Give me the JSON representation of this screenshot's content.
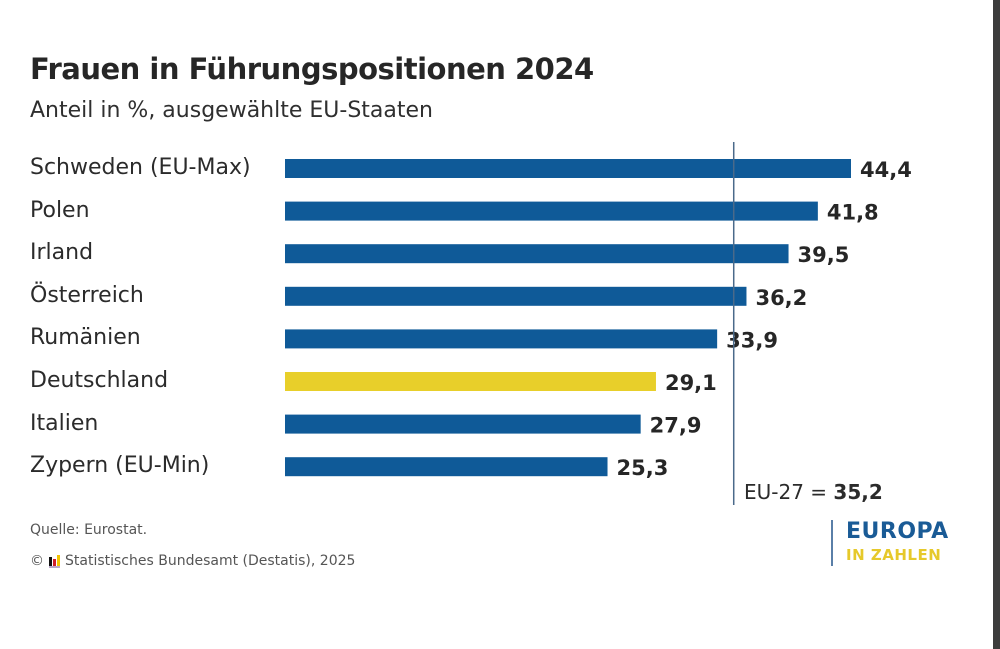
{
  "header": {
    "title": "Frauen in Führungspositionen 2024",
    "subtitle": "Anteil in %, ausgewählte EU-Staaten"
  },
  "colors": {
    "bar_default": "#0f5a98",
    "bar_highlight": "#e8cf2a",
    "reference_line": "#4a6a8a",
    "text": "#262626"
  },
  "chart_data": {
    "type": "bar",
    "orientation": "horizontal",
    "title": "Frauen in Führungspositionen 2024",
    "subtitle": "Anteil in %, ausgewählte EU-Staaten",
    "xlabel": "",
    "ylabel": "",
    "categories": [
      "Schweden (EU-Max)",
      "Polen",
      "Irland",
      "Österreich",
      "Rumänien",
      "Deutschland",
      "Italien",
      "Zypern (EU-Min)"
    ],
    "values": [
      44.4,
      41.8,
      39.5,
      36.2,
      33.9,
      29.1,
      27.9,
      25.3
    ],
    "value_labels": [
      "44,4",
      "41,8",
      "39,5",
      "36,2",
      "33,9",
      "29,1",
      "27,9",
      "25,3"
    ],
    "highlight": "Deutschland",
    "xlim": [
      0,
      44.4
    ],
    "grid": false,
    "reference_line": {
      "label": "EU-27",
      "value": 35.2,
      "value_label": "35,2"
    }
  },
  "reference": {
    "label": "EU-27 = ",
    "value": "35,2"
  },
  "footer": {
    "source": "Quelle: Eurostat.",
    "copyright_symbol": "©",
    "copyright": "Statistisches Bundesamt (Destatis), 2025"
  },
  "brand": {
    "line1": "EUROPA",
    "line2": "IN ZAHLEN"
  }
}
